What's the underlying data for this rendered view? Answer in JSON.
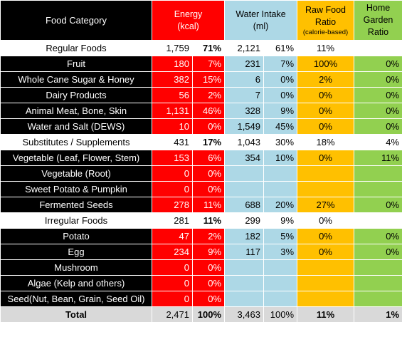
{
  "headers": {
    "category": "Food Category",
    "energy_line1": "Energy",
    "energy_line2": "(kcal)",
    "water_line1": "Water Intake",
    "water_line2": "(ml)",
    "raw_line1": "Raw Food",
    "raw_line2": "Ratio",
    "raw_line3": "(calorie-based)",
    "garden_line1": "Home",
    "garden_line2": "Garden",
    "garden_line3": "Ratio"
  },
  "rows": [
    {
      "type": "group",
      "label": "Regular Foods",
      "energy": "1,759",
      "energy_pct": "71%",
      "water": "2,121",
      "water_pct": "61%",
      "raw": "11%",
      "garden": ""
    },
    {
      "type": "item",
      "label": "Fruit",
      "energy": "180",
      "energy_pct": "7%",
      "water": "231",
      "water_pct": "7%",
      "raw": "100%",
      "garden": "0%"
    },
    {
      "type": "item",
      "label": "Whole Cane Sugar & Honey",
      "energy": "382",
      "energy_pct": "15%",
      "water": "6",
      "water_pct": "0%",
      "raw": "2%",
      "garden": "0%"
    },
    {
      "type": "item",
      "label": "Dairy Products",
      "energy": "56",
      "energy_pct": "2%",
      "water": "7",
      "water_pct": "0%",
      "raw": "0%",
      "garden": "0%"
    },
    {
      "type": "item",
      "label": "Animal Meat, Bone, Skin",
      "energy": "1,131",
      "energy_pct": "46%",
      "water": "328",
      "water_pct": "9%",
      "raw": "0%",
      "garden": "0%"
    },
    {
      "type": "item",
      "label": "Water and Salt (DEWS)",
      "energy": "10",
      "energy_pct": "0%",
      "water": "1,549",
      "water_pct": "45%",
      "raw": "0%",
      "garden": "0%"
    },
    {
      "type": "group",
      "label": "Substitutes / Supplements",
      "energy": "431",
      "energy_pct": "17%",
      "water": "1,043",
      "water_pct": "30%",
      "raw": "18%",
      "garden": "4%"
    },
    {
      "type": "item",
      "label": "Vegetable (Leaf, Flower, Stem)",
      "energy": "153",
      "energy_pct": "6%",
      "water": "354",
      "water_pct": "10%",
      "raw": "0%",
      "garden": "11%"
    },
    {
      "type": "item",
      "label": "Vegetable (Root)",
      "energy": "0",
      "energy_pct": "0%",
      "water": "",
      "water_pct": "",
      "raw": "",
      "garden": ""
    },
    {
      "type": "item",
      "label": "Sweet Potato & Pumpkin",
      "energy": "0",
      "energy_pct": "0%",
      "water": "",
      "water_pct": "",
      "raw": "",
      "garden": ""
    },
    {
      "type": "item",
      "label": "Fermented Seeds",
      "energy": "278",
      "energy_pct": "11%",
      "water": "688",
      "water_pct": "20%",
      "raw": "27%",
      "garden": "0%"
    },
    {
      "type": "group",
      "label": "Irregular Foods",
      "energy": "281",
      "energy_pct": "11%",
      "water": "299",
      "water_pct": "9%",
      "raw": "0%",
      "garden": ""
    },
    {
      "type": "item",
      "label": "Potato",
      "energy": "47",
      "energy_pct": "2%",
      "water": "182",
      "water_pct": "5%",
      "raw": "0%",
      "garden": "0%"
    },
    {
      "type": "item",
      "label": "Egg",
      "energy": "234",
      "energy_pct": "9%",
      "water": "117",
      "water_pct": "3%",
      "raw": "0%",
      "garden": "0%"
    },
    {
      "type": "item",
      "label": "Mushroom",
      "energy": "0",
      "energy_pct": "0%",
      "water": "",
      "water_pct": "",
      "raw": "",
      "garden": ""
    },
    {
      "type": "item",
      "label": "Algae (Kelp and others)",
      "energy": "0",
      "energy_pct": "0%",
      "water": "",
      "water_pct": "",
      "raw": "",
      "garden": ""
    },
    {
      "type": "item",
      "label": "Seed(Nut, Bean, Grain, Seed Oil)",
      "energy": "0",
      "energy_pct": "0%",
      "water": "",
      "water_pct": "",
      "raw": "",
      "garden": ""
    },
    {
      "type": "total",
      "label": "Total",
      "energy": "2,471",
      "energy_pct": "100%",
      "water": "3,463",
      "water_pct": "100%",
      "raw": "11%",
      "garden": "1%"
    }
  ],
  "colors": {
    "category_bg": "#000000",
    "energy_bg": "#ff0000",
    "water_bg": "#add8e6",
    "raw_bg": "#ffc000",
    "garden_bg": "#92d050",
    "group_bg": "#d9d9d9"
  }
}
